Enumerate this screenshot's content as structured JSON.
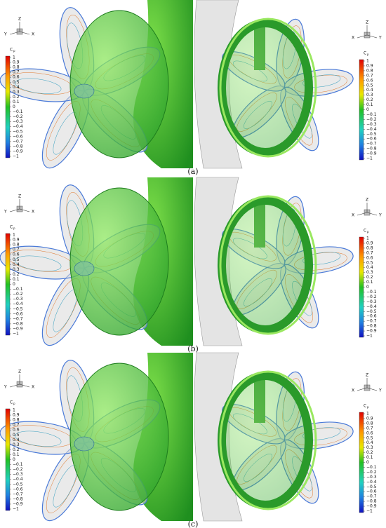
{
  "figure": {
    "colorbar": {
      "title": "C",
      "title_sub": "p",
      "labels": [
        "1",
        "0.9",
        "0.8",
        "0.7",
        "0.6",
        "0.5",
        "0.4",
        "0.3",
        "0.2",
        "0.1",
        "0",
        "−0.1",
        "−0.2",
        "−0.3",
        "−0.4",
        "−0.5",
        "−0.6",
        "−0.7",
        "−0.8",
        "−0.9",
        "−1"
      ]
    },
    "triad_left": {
      "up": "Z",
      "left": "Y",
      "right": "X"
    },
    "triad_right": {
      "up": "Z",
      "left": "X",
      "right": "Y"
    },
    "panels": [
      {
        "caption": "(a)"
      },
      {
        "caption": "(b)"
      },
      {
        "caption": "(c)"
      }
    ]
  }
}
